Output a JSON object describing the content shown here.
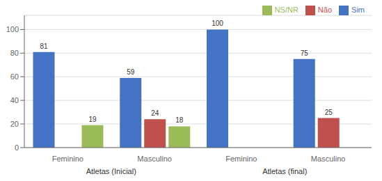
{
  "chart_data": {
    "type": "bar",
    "categories": [
      "Feminino",
      "Masculino",
      "Feminino",
      "Masculino"
    ],
    "series": [
      {
        "name": "Sim",
        "color": "#4472C4",
        "values": [
          81,
          59,
          100,
          75
        ]
      },
      {
        "name": "Não",
        "color": "#C0504D",
        "values": [
          0,
          24,
          0,
          25
        ]
      },
      {
        "name": "NS/NR",
        "color": "#9BBB59",
        "values": [
          19,
          18,
          0,
          0
        ]
      }
    ],
    "annotations": [
      "Atletas (Inicial)",
      "Atletas (final)"
    ],
    "ylim": [
      0,
      112
    ],
    "yticks": [
      0,
      20,
      40,
      60,
      80,
      100
    ],
    "grid": true,
    "legend": "upper right",
    "data_labels": true
  }
}
